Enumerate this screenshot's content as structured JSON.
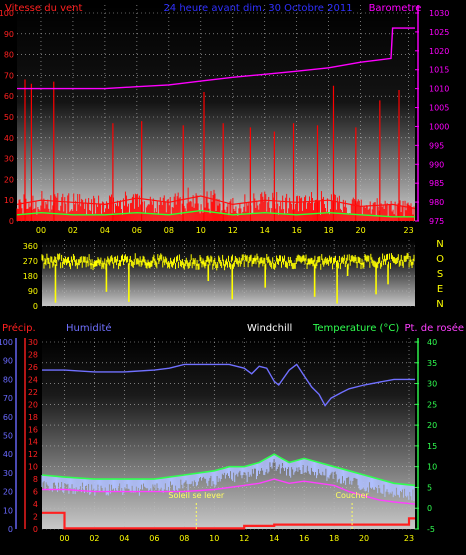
{
  "colors": {
    "wind": "#ff1010",
    "gust": "#ff0000",
    "windavg": "#30ff30",
    "baro": "#ff00ff",
    "title": "#3030ff",
    "dir": "#ffff00",
    "hum": "#7070ff",
    "precip": "#ff2020",
    "temp": "#30ff50",
    "dew": "#ff40ff",
    "windchill": "#ffffff",
    "feels": "#b0c0ff",
    "sun": "#ffff60",
    "axisblue": "#6a6aff"
  },
  "chart_data": [
    {
      "type": "line",
      "title": "24 heure avant dim. 30 Octobre 2011",
      "left_label": "Vitesse du vent",
      "right_label": "Barometre",
      "x_ticks": [
        "00",
        "02",
        "04",
        "06",
        "08",
        "10",
        "12",
        "14",
        "16",
        "18",
        "20",
        "23"
      ],
      "yleft_ticks": [
        "0",
        "10",
        "20",
        "30",
        "40",
        "50",
        "60",
        "70",
        "80",
        "90",
        "100"
      ],
      "yleft_range": [
        0,
        100
      ],
      "yright_ticks": [
        "975",
        "980",
        "985",
        "990",
        "995",
        "1000",
        "1005",
        "1010",
        "1015",
        "1020",
        "1025",
        "1030"
      ],
      "yright_range": [
        975,
        1030
      ],
      "series": [
        {
          "key": "baro",
          "x": [
            -1.5,
            2,
            4,
            6,
            8,
            10,
            12,
            14,
            16,
            18,
            20,
            21.9,
            22,
            23.4
          ],
          "values": [
            1010,
            1010,
            1010,
            1010.5,
            1011,
            1012,
            1013,
            1013.8,
            1014.6,
            1015.5,
            1017,
            1018,
            1026,
            1026
          ]
        },
        {
          "key": "wind",
          "x": [
            -1.5,
            0,
            2,
            4,
            6,
            8,
            10,
            12,
            14,
            16,
            18,
            20,
            22,
            23.4
          ],
          "values": [
            8,
            10,
            9,
            8,
            11,
            9,
            12,
            8,
            10,
            9,
            10,
            7,
            8,
            6
          ]
        },
        {
          "key": "windavg",
          "x": [
            -1.5,
            0,
            2,
            4,
            6,
            8,
            10,
            12,
            14,
            16,
            18,
            20,
            22,
            23.4
          ],
          "values": [
            3,
            4,
            3,
            3,
            4,
            3,
            5,
            3,
            4,
            3,
            4,
            3,
            2,
            2
          ]
        },
        {
          "key": "gust",
          "x": [
            -1,
            -0.6,
            0.8,
            4.5,
            6.3,
            8.9,
            10.2,
            11.4,
            13.1,
            14.6,
            15.8,
            17.3,
            18.3,
            19.7,
            21.2,
            22.4
          ],
          "values": [
            68,
            66,
            67,
            47,
            48,
            46,
            62,
            47,
            45,
            43,
            47,
            46,
            65,
            45,
            58,
            63
          ]
        }
      ]
    },
    {
      "type": "scatter",
      "title": "",
      "yleft_ticks": [
        "0",
        "90",
        "180",
        "270",
        "360"
      ],
      "yleft_range": [
        0,
        360
      ],
      "compass": [
        "N",
        "O",
        "S",
        "E",
        "N"
      ],
      "series": [
        {
          "key": "dir",
          "x": [
            -1.5,
            0,
            2,
            4,
            6,
            8,
            10,
            12,
            14,
            16,
            18,
            20,
            22,
            23.4
          ],
          "values": [
            265,
            270,
            262,
            268,
            272,
            266,
            258,
            270,
            264,
            262,
            268,
            265,
            270,
            272
          ]
        },
        {
          "key": "dir_drops",
          "x": [
            -0.6,
            2.8,
            4.3,
            9.6,
            11.2,
            13.4,
            16.7,
            18.2,
            18.9,
            20.8,
            21.6
          ],
          "values": [
            20,
            85,
            25,
            150,
            40,
            110,
            55,
            15,
            180,
            70,
            130
          ]
        }
      ]
    },
    {
      "type": "line",
      "title": "",
      "labels": {
        "precip": "Précip.",
        "hum": "Humidité",
        "windchill": "Windchill",
        "temp": "Temperature (°C)",
        "dew": "Pt. de rosée",
        "sunrise": "Soleil se lever",
        "sunset": "Coucher"
      },
      "x_ticks": [
        "00",
        "02",
        "04",
        "06",
        "08",
        "10",
        "12",
        "14",
        "16",
        "18",
        "20",
        "23"
      ],
      "yhum_ticks": [
        "0",
        "10",
        "20",
        "30",
        "40",
        "50",
        "60",
        "70",
        "80",
        "90",
        "100"
      ],
      "yhum_range": [
        0,
        100
      ],
      "yprecip_ticks": [
        "0",
        "2",
        "4",
        "6",
        "8",
        "10",
        "12",
        "14",
        "16",
        "18",
        "20",
        "22",
        "24",
        "26",
        "28",
        "30"
      ],
      "yprecip_range": [
        0,
        30
      ],
      "ytemp_ticks": [
        "-5",
        "0",
        "5",
        "10",
        "15",
        "20",
        "25",
        "30",
        "35",
        "40"
      ],
      "ytemp_range": [
        -5,
        40
      ],
      "sunrise_x": 8.8,
      "sunset_x": 19.2,
      "series": [
        {
          "key": "hum",
          "x": [
            -1.5,
            0,
            2,
            4,
            6,
            7,
            8,
            9,
            10,
            11,
            12,
            12.5,
            13,
            13.5,
            14,
            14.3,
            15,
            15.5,
            16,
            16.5,
            17,
            17.4,
            17.8,
            18.5,
            19,
            20,
            22,
            23.4
          ],
          "values": [
            85,
            85,
            84,
            84,
            85,
            86,
            88,
            88,
            88,
            88,
            86,
            83,
            87,
            86,
            79,
            77,
            85,
            88,
            82,
            76,
            72,
            66,
            70,
            73,
            75,
            77,
            80,
            80
          ]
        },
        {
          "key": "temp",
          "x": [
            -1.5,
            0,
            2,
            4,
            6,
            8,
            10,
            11,
            12,
            13,
            14,
            14.5,
            15,
            16,
            17,
            18,
            19,
            20,
            21,
            22,
            23.4
          ],
          "values": [
            8,
            7.5,
            7,
            7,
            7,
            8,
            9,
            10,
            10,
            11,
            13,
            12,
            11,
            12,
            11,
            10,
            9,
            8,
            7,
            6,
            5.5
          ]
        },
        {
          "key": "feels",
          "x": [
            -1.5,
            0,
            2,
            4,
            6,
            8,
            10,
            11,
            12,
            13,
            14,
            15,
            16,
            17,
            18,
            19,
            20,
            21,
            22,
            23.4
          ],
          "values": [
            7,
            6.5,
            6,
            6,
            6,
            7,
            8,
            9,
            9,
            10,
            12,
            10,
            11,
            10,
            9,
            8,
            7,
            6,
            5,
            4.5
          ]
        },
        {
          "key": "dew",
          "x": [
            -1.5,
            0,
            2,
            4,
            6,
            8,
            10,
            12,
            13,
            14,
            15,
            16,
            17,
            18,
            19,
            20,
            21,
            22,
            23.4
          ],
          "values": [
            4.5,
            4.5,
            4,
            4,
            4,
            4,
            4.5,
            5.5,
            6,
            7,
            6,
            6.5,
            6,
            5.5,
            4,
            3,
            2,
            1.5,
            1
          ]
        },
        {
          "key": "precip",
          "x": [
            -1.5,
            0,
            0,
            12,
            12,
            14,
            14,
            23,
            23,
            23.4
          ],
          "values": [
            2.6,
            2.6,
            0.1,
            0.1,
            0.5,
            0.5,
            0.7,
            0.7,
            1.7,
            1.7
          ]
        }
      ]
    }
  ]
}
